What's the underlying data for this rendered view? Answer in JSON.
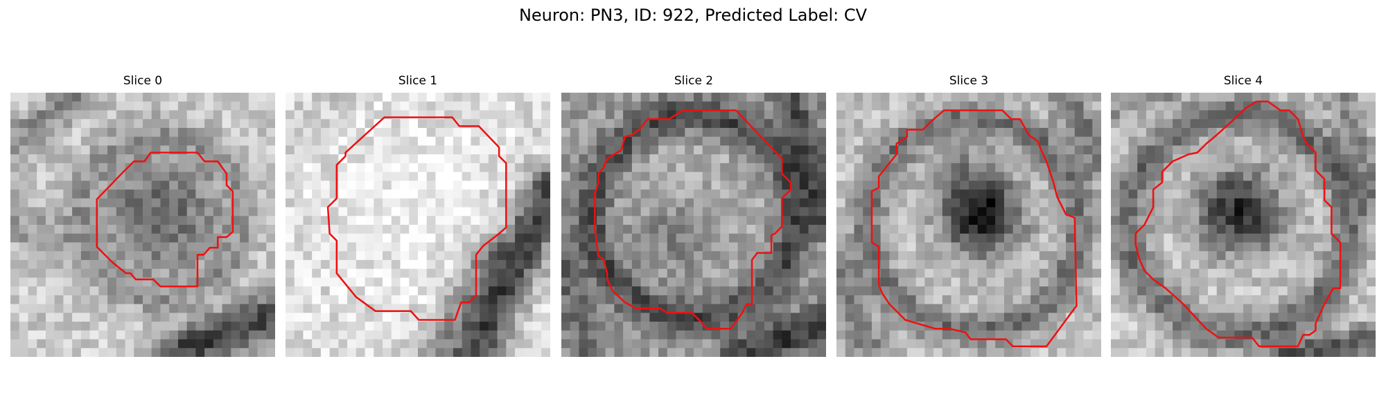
{
  "figure": {
    "title": "Neuron: PN3, ID: 922, Predicted Label: CV"
  },
  "colors": {
    "outline": "#ee1111",
    "dark_pixel": "#000000",
    "light_pixel": "#ffffff"
  },
  "slices": [
    {
      "label": "Slice 0"
    },
    {
      "label": "Slice 1"
    },
    {
      "label": "Slice 2"
    },
    {
      "label": "Slice 3"
    },
    {
      "label": "Slice 4"
    }
  ]
}
